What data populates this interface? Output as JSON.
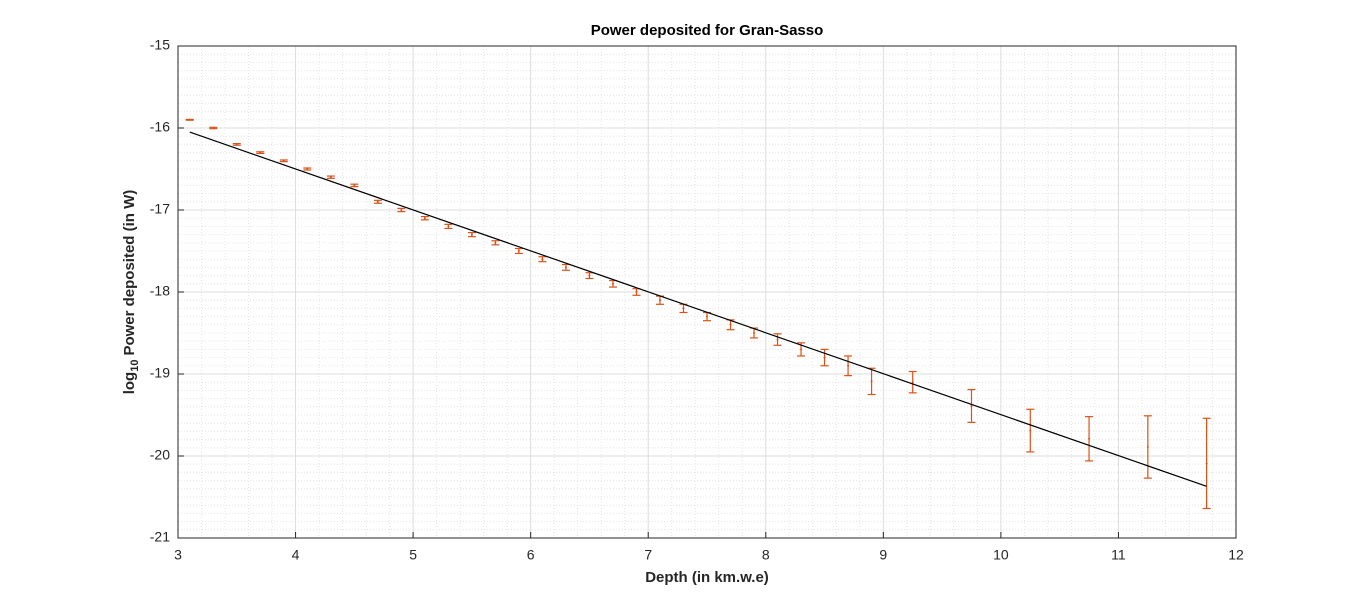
{
  "chart_data": {
    "type": "errorbar",
    "title": "Power deposited for Gran-Sasso",
    "xlabel": "Depth (in km.w.e)",
    "ylabel_parts": [
      "log",
      "10",
      "Power deposited (in W)"
    ],
    "x": [
      3.1,
      3.3,
      3.5,
      3.7,
      3.9,
      4.1,
      4.3,
      4.5,
      4.7,
      4.9,
      5.1,
      5.3,
      5.5,
      5.7,
      5.9,
      6.1,
      6.3,
      6.5,
      6.7,
      6.9,
      7.1,
      7.3,
      7.5,
      7.7,
      7.9,
      8.1,
      8.3,
      8.5,
      8.7,
      8.9,
      9.25,
      9.75,
      10.25,
      10.75,
      11.25,
      11.75
    ],
    "values": [
      -15.9,
      -16.0,
      -16.2,
      -16.3,
      -16.4,
      -16.5,
      -16.6,
      -16.7,
      -16.9,
      -17.0,
      -17.1,
      -17.2,
      -17.3,
      -17.4,
      -17.5,
      -17.6,
      -17.7,
      -17.8,
      -17.9,
      -18.0,
      -18.1,
      -18.2,
      -18.3,
      -18.4,
      -18.5,
      -18.58,
      -18.7,
      -18.8,
      -18.9,
      -19.09,
      -19.1,
      -19.39,
      -19.69,
      -19.79,
      -19.89,
      -20.09
    ],
    "errors": [
      0.005,
      0.008,
      0.01,
      0.01,
      0.01,
      0.012,
      0.014,
      0.015,
      0.018,
      0.02,
      0.02,
      0.025,
      0.025,
      0.025,
      0.03,
      0.03,
      0.035,
      0.035,
      0.04,
      0.04,
      0.05,
      0.05,
      0.05,
      0.06,
      0.06,
      0.07,
      0.08,
      0.1,
      0.12,
      0.16,
      0.13,
      0.2,
      0.26,
      0.27,
      0.38,
      0.55
    ],
    "color": "#d95319",
    "fit": {
      "x": [
        3.1,
        11.75
      ],
      "values": [
        -16.05,
        -20.37
      ],
      "color": "#000000"
    },
    "xlim": [
      3,
      12
    ],
    "ylim": [
      -21,
      -15
    ],
    "xticks": [
      3,
      4,
      5,
      6,
      7,
      8,
      9,
      10,
      11,
      12
    ],
    "yticks": [
      -21,
      -20,
      -19,
      -18,
      -17,
      -16,
      -15
    ],
    "grid": true,
    "minor_grid": true
  }
}
